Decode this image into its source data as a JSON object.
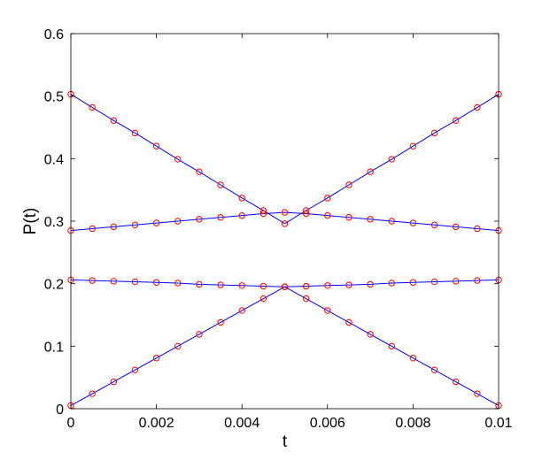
{
  "chart_data": {
    "type": "line",
    "title": "",
    "xlabel": "t",
    "ylabel": "P(t)",
    "xlim": [
      0,
      0.01
    ],
    "ylim": [
      0,
      0.6
    ],
    "xticks": [
      0,
      0.002,
      0.004,
      0.006,
      0.008,
      0.01
    ],
    "xtick_labels": [
      "0",
      "0.002",
      "0.004",
      "0.006",
      "0.008",
      "0.01"
    ],
    "yticks": [
      0,
      0.1,
      0.2,
      0.3,
      0.4,
      0.5,
      0.6
    ],
    "ytick_labels": [
      "0",
      "0.1",
      "0.2",
      "0.3",
      "0.4",
      "0.5",
      "0.6"
    ],
    "grid": false,
    "legend": "none",
    "line_color": "#0000ff",
    "marker_color": "#ff0000",
    "marker": "circle",
    "x": [
      0,
      0.0005,
      0.001,
      0.0015,
      0.002,
      0.0025,
      0.003,
      0.0035,
      0.004,
      0.0045,
      0.005,
      0.0055,
      0.006,
      0.0065,
      0.007,
      0.0075,
      0.008,
      0.0085,
      0.009,
      0.0095,
      0.01
    ],
    "series": [
      {
        "values": [
          0.503,
          0.482,
          0.461,
          0.441,
          0.42,
          0.399,
          0.379,
          0.358,
          0.337,
          0.317,
          0.296,
          0.317,
          0.337,
          0.358,
          0.379,
          0.399,
          0.42,
          0.441,
          0.461,
          0.482,
          0.503
        ]
      },
      {
        "values": [
          0.285,
          0.288,
          0.291,
          0.294,
          0.297,
          0.3,
          0.303,
          0.306,
          0.309,
          0.312,
          0.314,
          0.312,
          0.309,
          0.306,
          0.303,
          0.3,
          0.297,
          0.294,
          0.291,
          0.288,
          0.285
        ]
      },
      {
        "values": [
          0.206,
          0.205,
          0.204,
          0.203,
          0.202,
          0.201,
          0.199,
          0.198,
          0.197,
          0.196,
          0.195,
          0.196,
          0.197,
          0.198,
          0.199,
          0.201,
          0.202,
          0.203,
          0.204,
          0.205,
          0.206
        ]
      },
      {
        "values": [
          0.005,
          0.024,
          0.043,
          0.062,
          0.081,
          0.1,
          0.119,
          0.138,
          0.157,
          0.176,
          0.195,
          0.176,
          0.157,
          0.138,
          0.119,
          0.1,
          0.081,
          0.062,
          0.043,
          0.024,
          0.005
        ]
      }
    ]
  }
}
